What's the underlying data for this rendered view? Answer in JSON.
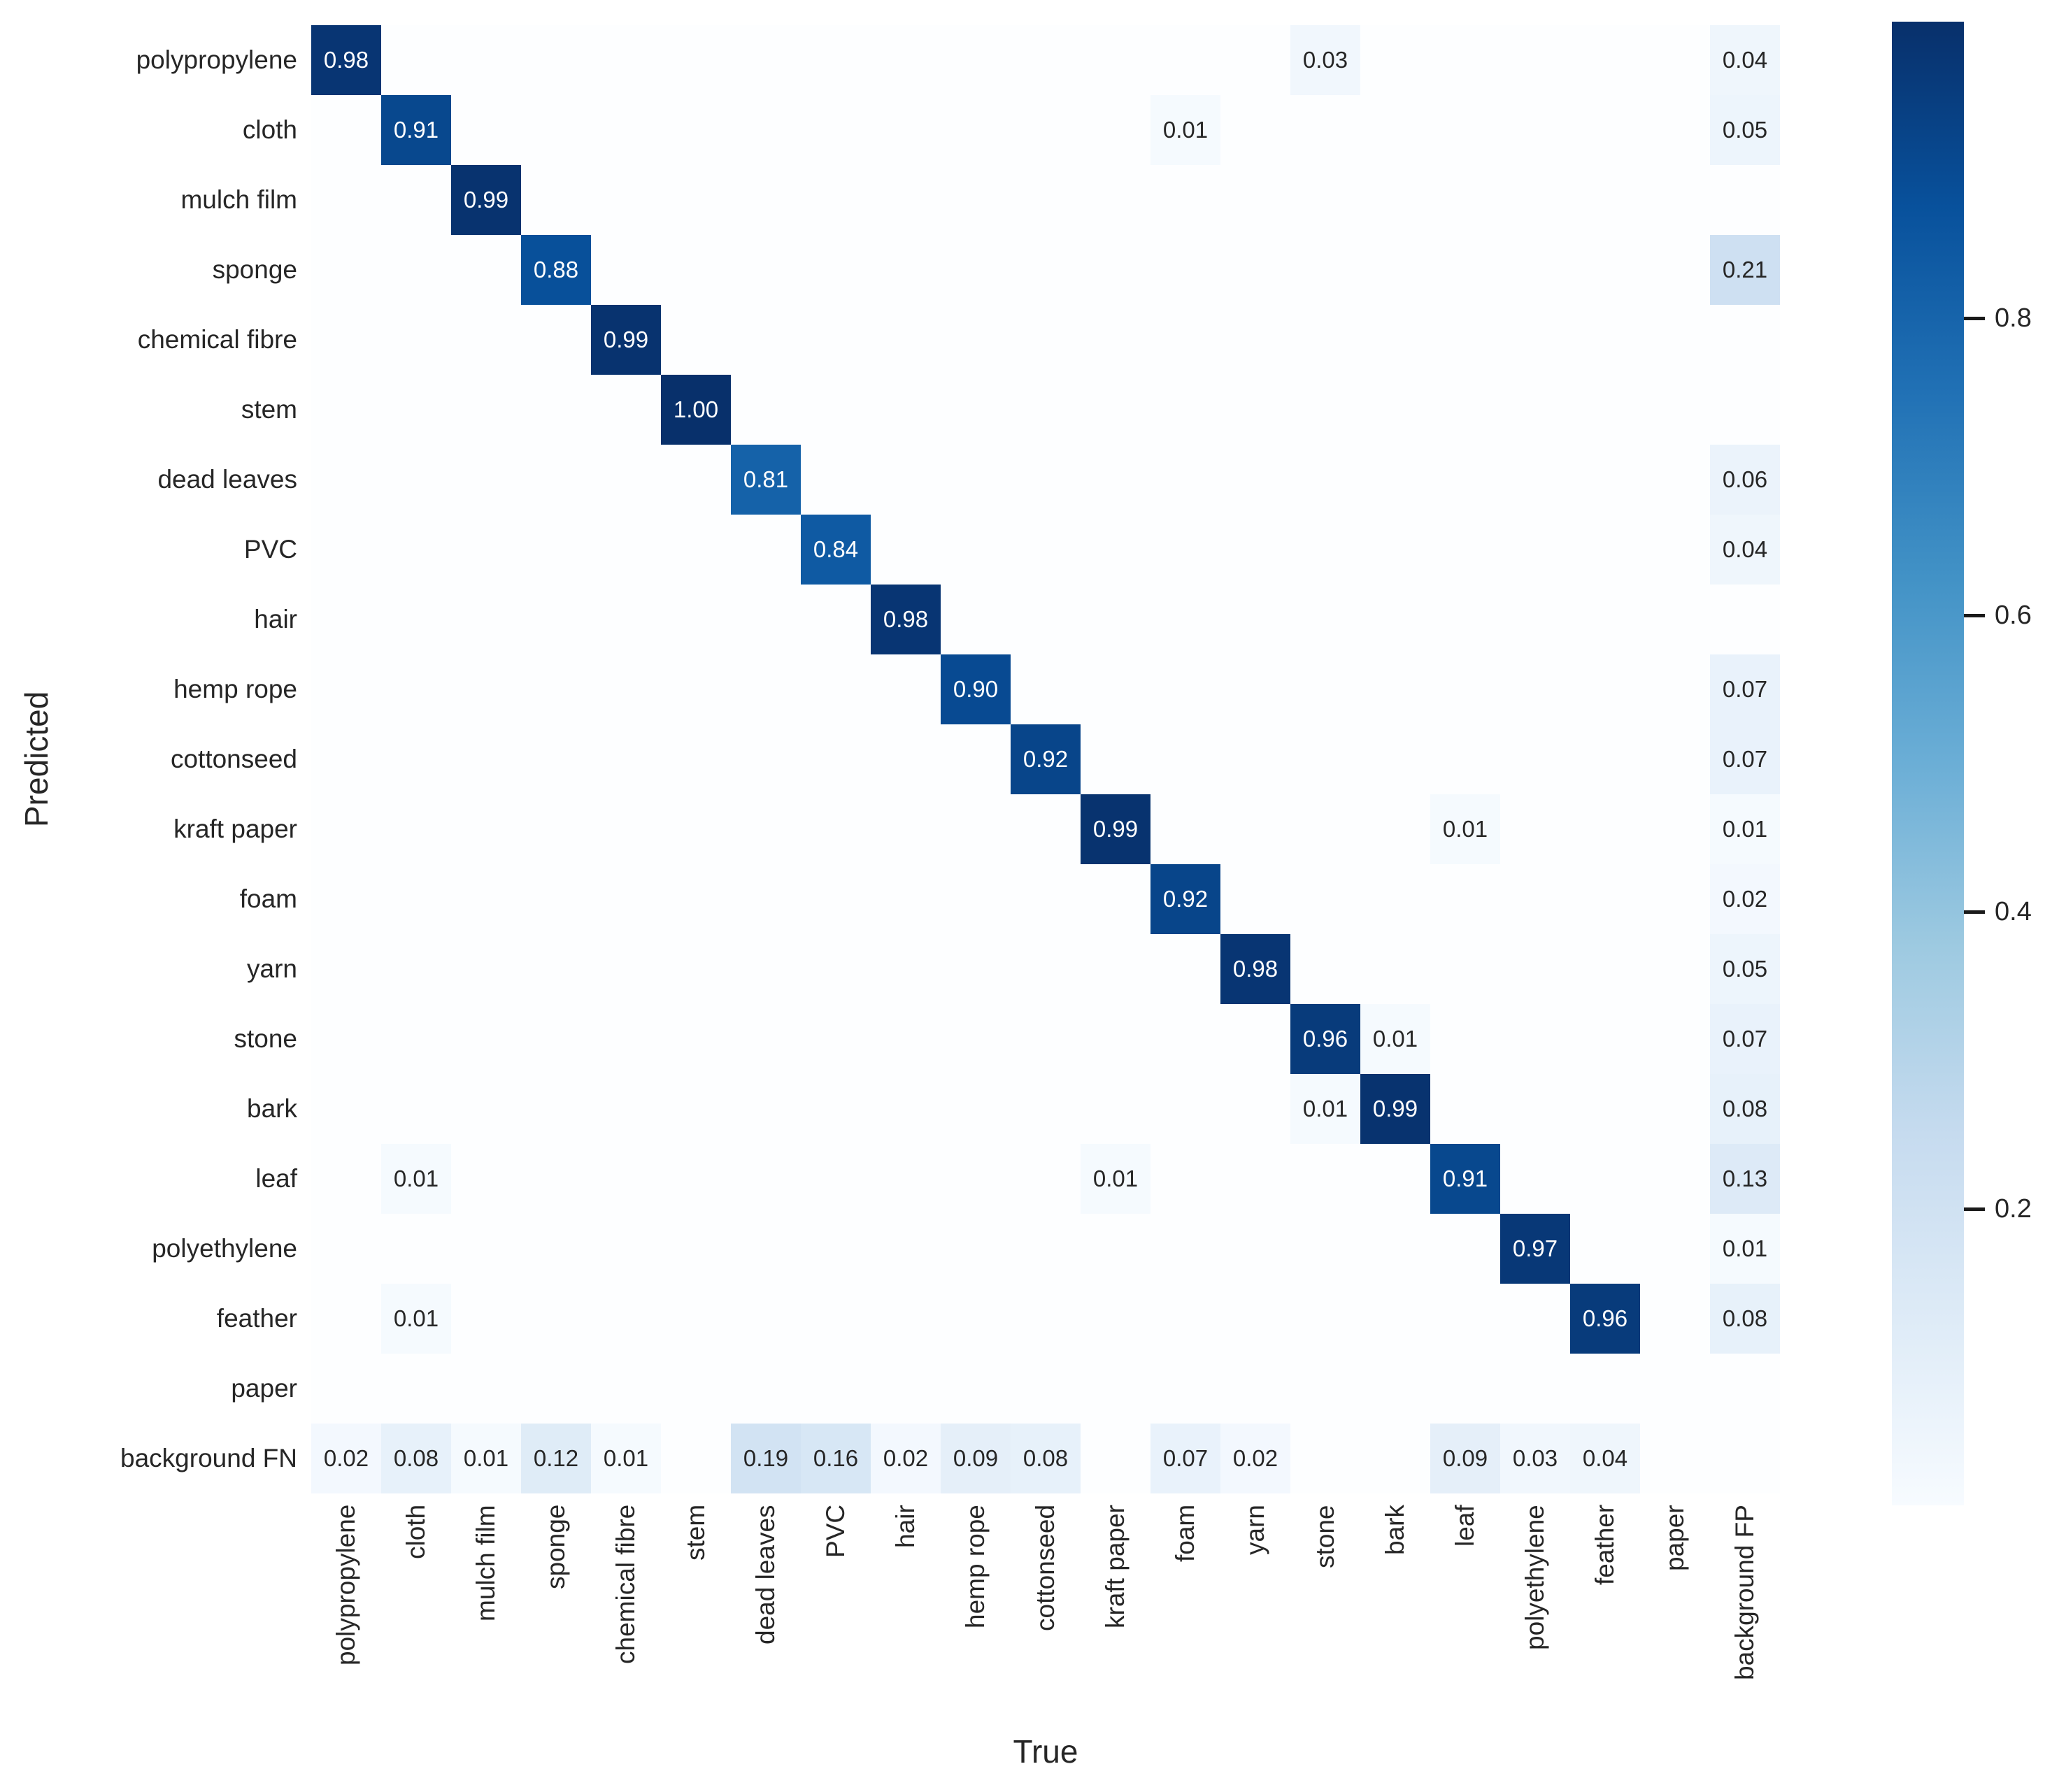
{
  "chart_data": {
    "type": "heatmap",
    "title": "",
    "xlabel": "True",
    "ylabel": "Predicted",
    "x_categories": [
      "polypropylene",
      "cloth",
      "mulch film",
      "sponge",
      "chemical fibre",
      "stem",
      "dead leaves",
      "PVC",
      "hair",
      "hemp rope",
      "cottonseed",
      "kraft paper",
      "foam",
      "yarn",
      "stone",
      "bark",
      "leaf",
      "polyethylene",
      "feather",
      "paper",
      "background FP"
    ],
    "y_categories": [
      "polypropylene",
      "cloth",
      "mulch film",
      "sponge",
      "chemical fibre",
      "stem",
      "dead leaves",
      "PVC",
      "hair",
      "hemp rope",
      "cottonseed",
      "kraft paper",
      "foam",
      "yarn",
      "stone",
      "bark",
      "leaf",
      "polyethylene",
      "feather",
      "paper",
      "background FN"
    ],
    "vmin": 0,
    "vmax": 1,
    "colormap": "Blues",
    "grid": false,
    "annotation_format": "2-decimals, zero cells blank",
    "colorbar": {
      "position": "right",
      "tick_values": [
        0.8,
        0.6,
        0.4,
        0.2
      ]
    },
    "cells": [
      {
        "r": 0,
        "c": 0,
        "v": 0.98
      },
      {
        "r": 0,
        "c": 14,
        "v": 0.03
      },
      {
        "r": 0,
        "c": 20,
        "v": 0.04
      },
      {
        "r": 1,
        "c": 1,
        "v": 0.91
      },
      {
        "r": 1,
        "c": 12,
        "v": 0.01
      },
      {
        "r": 1,
        "c": 20,
        "v": 0.05
      },
      {
        "r": 2,
        "c": 2,
        "v": 0.99
      },
      {
        "r": 3,
        "c": 3,
        "v": 0.88
      },
      {
        "r": 3,
        "c": 20,
        "v": 0.21
      },
      {
        "r": 4,
        "c": 4,
        "v": 0.99
      },
      {
        "r": 5,
        "c": 5,
        "v": 1.0
      },
      {
        "r": 6,
        "c": 6,
        "v": 0.81
      },
      {
        "r": 6,
        "c": 20,
        "v": 0.06
      },
      {
        "r": 7,
        "c": 7,
        "v": 0.84
      },
      {
        "r": 7,
        "c": 20,
        "v": 0.04
      },
      {
        "r": 8,
        "c": 8,
        "v": 0.98
      },
      {
        "r": 9,
        "c": 9,
        "v": 0.9
      },
      {
        "r": 9,
        "c": 20,
        "v": 0.07
      },
      {
        "r": 10,
        "c": 10,
        "v": 0.92
      },
      {
        "r": 10,
        "c": 20,
        "v": 0.07
      },
      {
        "r": 11,
        "c": 11,
        "v": 0.99
      },
      {
        "r": 11,
        "c": 16,
        "v": 0.01
      },
      {
        "r": 11,
        "c": 20,
        "v": 0.01
      },
      {
        "r": 12,
        "c": 12,
        "v": 0.92
      },
      {
        "r": 12,
        "c": 20,
        "v": 0.02
      },
      {
        "r": 13,
        "c": 13,
        "v": 0.98
      },
      {
        "r": 13,
        "c": 20,
        "v": 0.05
      },
      {
        "r": 14,
        "c": 14,
        "v": 0.96
      },
      {
        "r": 14,
        "c": 15,
        "v": 0.01
      },
      {
        "r": 14,
        "c": 20,
        "v": 0.07
      },
      {
        "r": 15,
        "c": 14,
        "v": 0.01
      },
      {
        "r": 15,
        "c": 15,
        "v": 0.99
      },
      {
        "r": 15,
        "c": 20,
        "v": 0.08
      },
      {
        "r": 16,
        "c": 1,
        "v": 0.01
      },
      {
        "r": 16,
        "c": 11,
        "v": 0.01
      },
      {
        "r": 16,
        "c": 16,
        "v": 0.91
      },
      {
        "r": 16,
        "c": 20,
        "v": 0.13
      },
      {
        "r": 17,
        "c": 17,
        "v": 0.97
      },
      {
        "r": 17,
        "c": 20,
        "v": 0.01
      },
      {
        "r": 18,
        "c": 1,
        "v": 0.01
      },
      {
        "r": 18,
        "c": 18,
        "v": 0.96
      },
      {
        "r": 18,
        "c": 20,
        "v": 0.08
      },
      {
        "r": 20,
        "c": 0,
        "v": 0.02
      },
      {
        "r": 20,
        "c": 1,
        "v": 0.08
      },
      {
        "r": 20,
        "c": 2,
        "v": 0.01
      },
      {
        "r": 20,
        "c": 3,
        "v": 0.12
      },
      {
        "r": 20,
        "c": 4,
        "v": 0.01
      },
      {
        "r": 20,
        "c": 6,
        "v": 0.19
      },
      {
        "r": 20,
        "c": 7,
        "v": 0.16
      },
      {
        "r": 20,
        "c": 8,
        "v": 0.02
      },
      {
        "r": 20,
        "c": 9,
        "v": 0.09
      },
      {
        "r": 20,
        "c": 10,
        "v": 0.08
      },
      {
        "r": 20,
        "c": 12,
        "v": 0.07
      },
      {
        "r": 20,
        "c": 13,
        "v": 0.02
      },
      {
        "r": 20,
        "c": 16,
        "v": 0.09
      },
      {
        "r": 20,
        "c": 17,
        "v": 0.03
      },
      {
        "r": 20,
        "c": 18,
        "v": 0.04
      }
    ]
  },
  "colors": {
    "cmap_anchors": [
      "#f7fbff",
      "#deebf7",
      "#c6dbef",
      "#9ecae1",
      "#6baed6",
      "#4292c6",
      "#2171b5",
      "#08519c",
      "#08306b"
    ],
    "annotation_dark_text": "#262626",
    "annotation_light_text": "#ffffff",
    "tick_color": "#1a1a1a"
  }
}
